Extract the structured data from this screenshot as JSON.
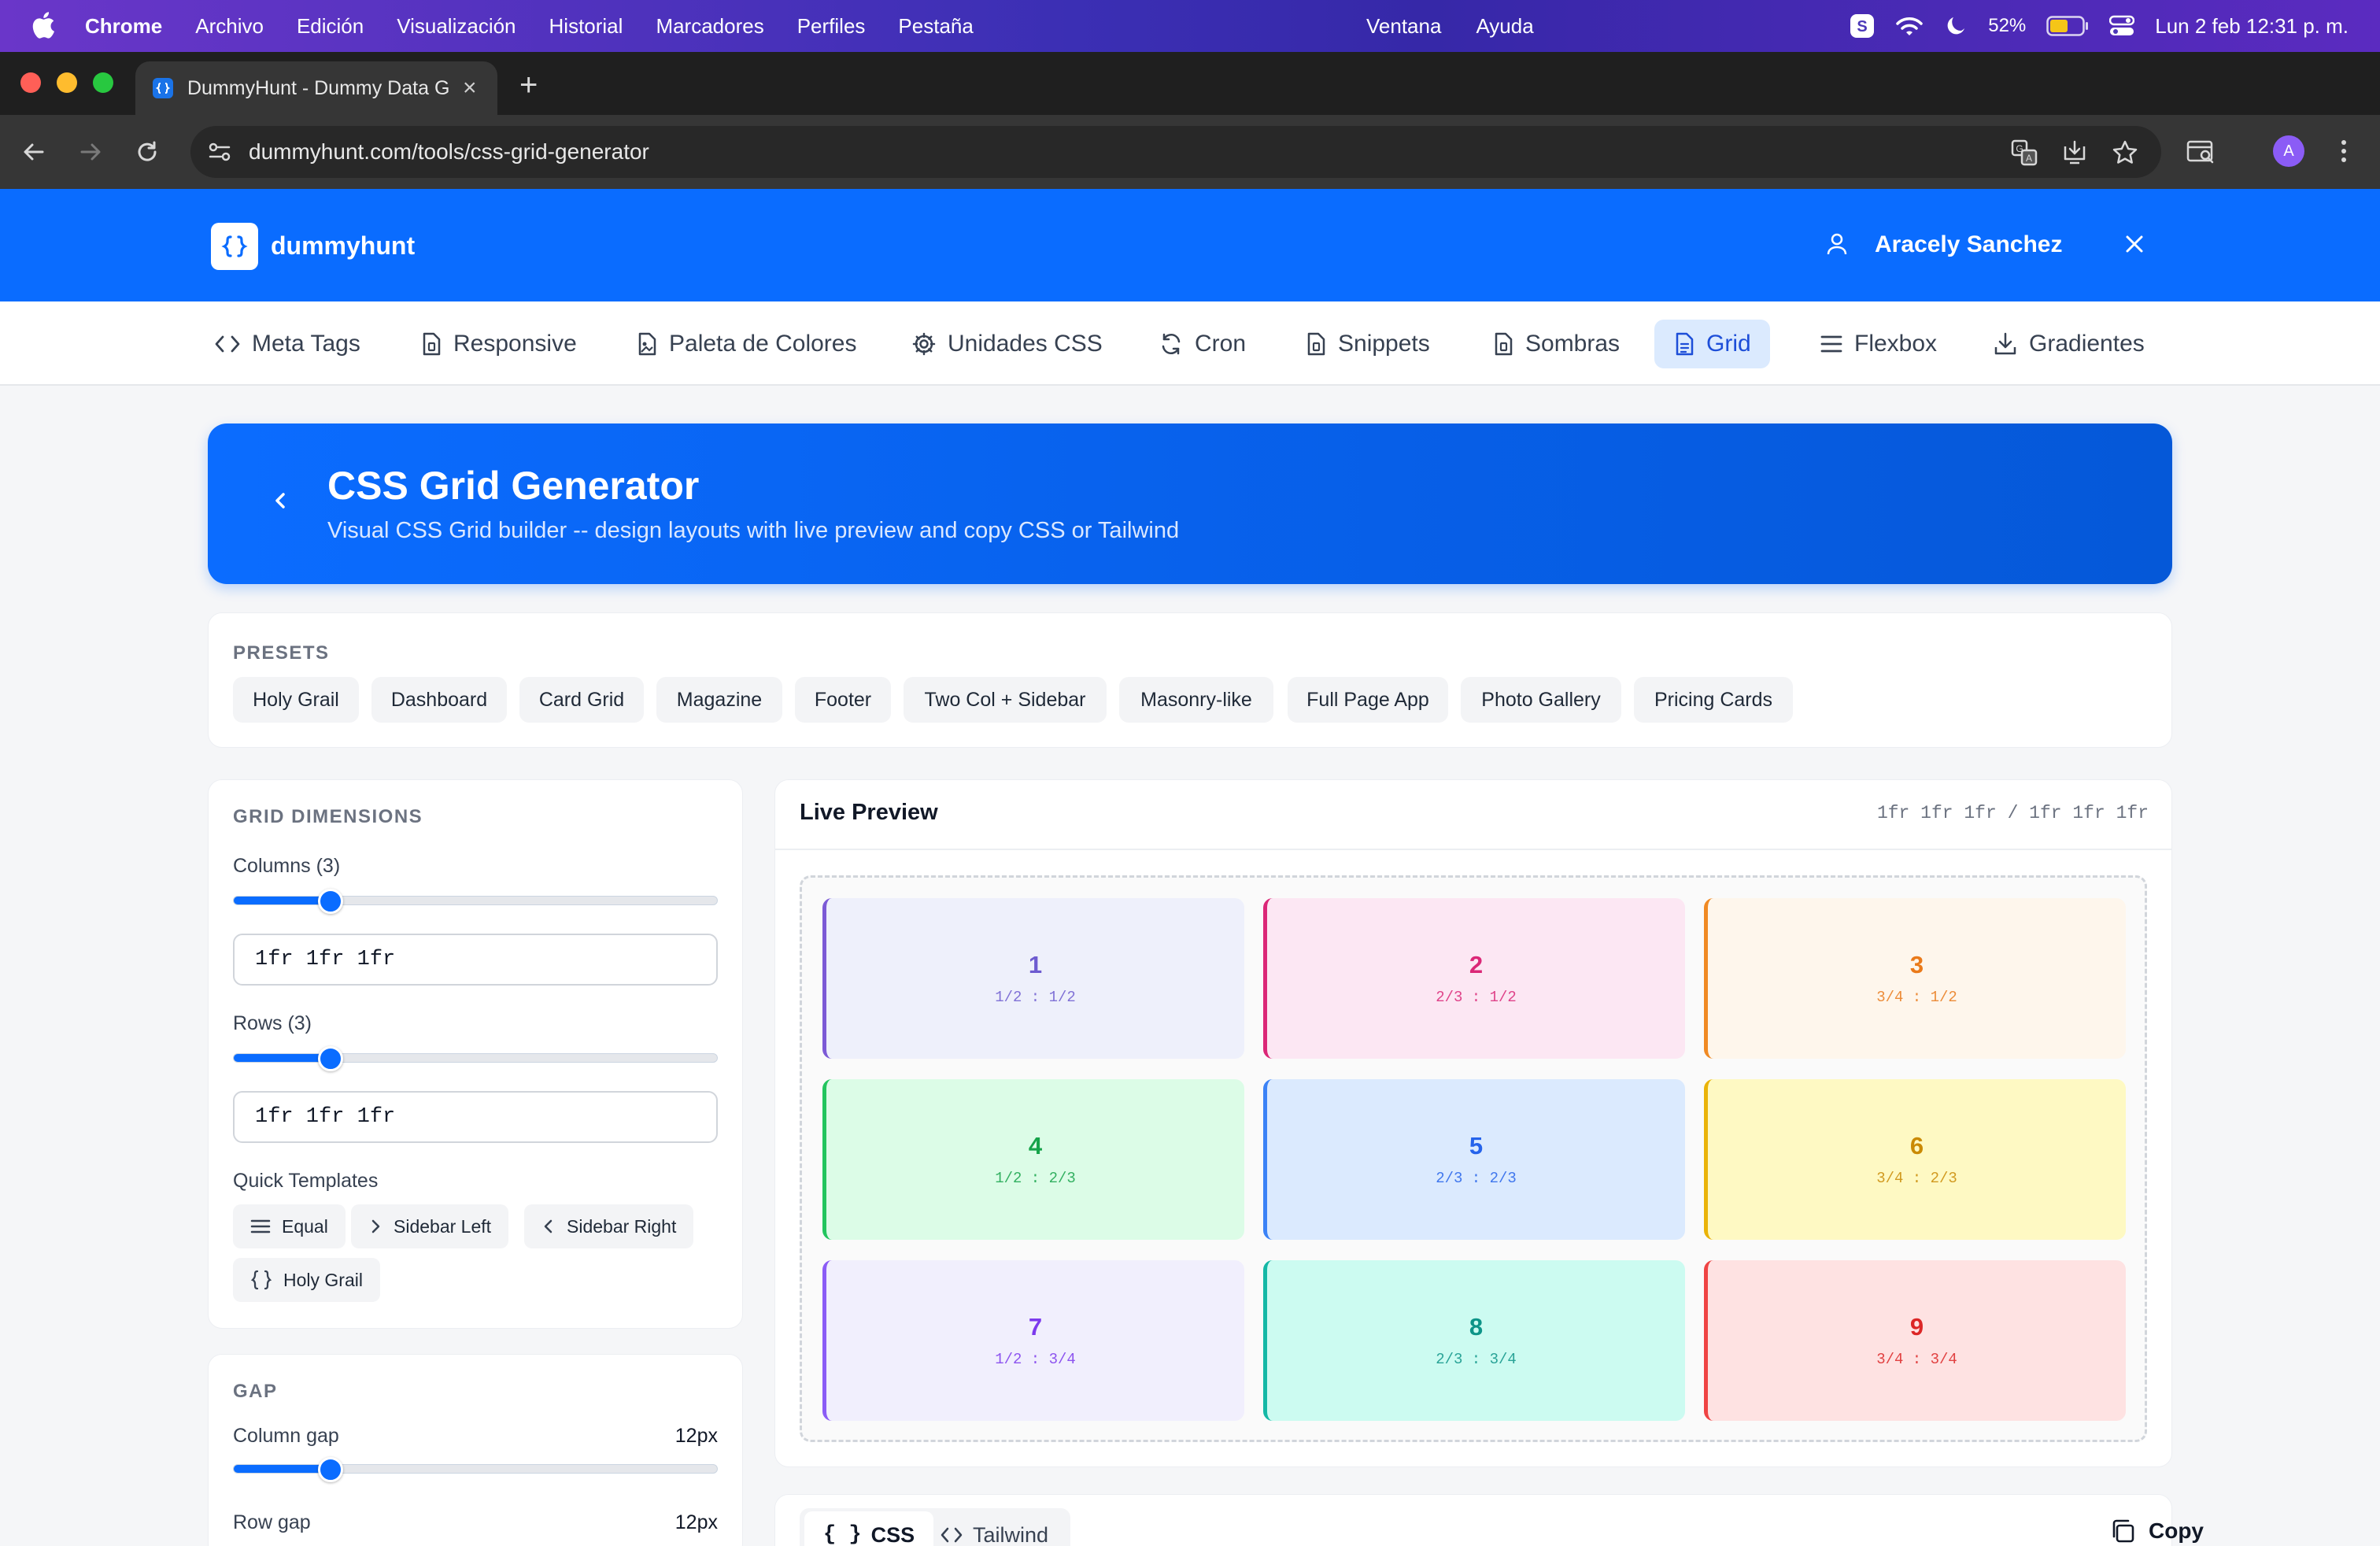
{
  "menubar": {
    "app": "Chrome",
    "items": [
      "Archivo",
      "Edición",
      "Visualización",
      "Historial",
      "Marcadores",
      "Perfiles",
      "Pestaña"
    ],
    "items_mid": [
      "Ventana",
      "Ayuda"
    ],
    "battery": "52%",
    "clock": "Lun 2 feb 12:31 p. m."
  },
  "browser": {
    "tab_title": "DummyHunt - Dummy Data G",
    "url": "dummyhunt.com/tools/css-grid-generator",
    "profile_initial": "A"
  },
  "site": {
    "brand": "dummyhunt",
    "user_name": "Aracely Sanchez"
  },
  "nav": {
    "items": [
      {
        "label": "Meta Tags",
        "icon": "code-icon"
      },
      {
        "label": "Responsive",
        "icon": "file-icon"
      },
      {
        "label": "Paleta de Colores",
        "icon": "image-file-icon"
      },
      {
        "label": "Unidades CSS",
        "icon": "gear-icon"
      },
      {
        "label": "Cron",
        "icon": "refresh-icon"
      },
      {
        "label": "Snippets",
        "icon": "file-icon"
      },
      {
        "label": "Sombras",
        "icon": "file-icon"
      },
      {
        "label": "Grid",
        "icon": "document-icon"
      },
      {
        "label": "Flexbox",
        "icon": "menu-lines-icon"
      },
      {
        "label": "Gradientes",
        "icon": "download-icon"
      }
    ],
    "active": "Grid"
  },
  "hero": {
    "title": "CSS Grid Generator",
    "subtitle": "Visual CSS Grid builder -- design layouts with live preview and copy CSS or Tailwind"
  },
  "presets": {
    "label": "PRESETS",
    "items": [
      "Holy Grail",
      "Dashboard",
      "Card Grid",
      "Magazine",
      "Footer",
      "Two Col + Sidebar",
      "Masonry-like",
      "Full Page App",
      "Photo Gallery",
      "Pricing Cards"
    ]
  },
  "dimensions": {
    "label": "GRID DIMENSIONS",
    "columns_label": "Columns (3)",
    "columns_slider_fraction": 0.2,
    "columns_value": "1fr 1fr 1fr",
    "rows_label": "Rows (3)",
    "rows_slider_fraction": 0.2,
    "rows_value": "1fr 1fr 1fr",
    "quick_templates_label": "Quick Templates",
    "quick_templates": [
      "Equal",
      "Sidebar Left",
      "Sidebar Right",
      "Holy Grail"
    ]
  },
  "gap": {
    "label": "GAP",
    "column_gap_label": "Column gap",
    "column_gap_value": "12px",
    "column_gap_fraction": 0.2,
    "row_gap_label": "Row gap",
    "row_gap_value": "12px"
  },
  "preview": {
    "title": "Live Preview",
    "template": "1fr 1fr 1fr / 1fr 1fr 1fr",
    "cells": [
      {
        "num": "1",
        "pos": "1/2 : 1/2",
        "color": "#6d5bd0",
        "bg": "#eef0fb",
        "border": "#7c5ad6"
      },
      {
        "num": "2",
        "pos": "2/3 : 1/2",
        "color": "#db2777",
        "bg": "#fce7f3",
        "border": "#db2777"
      },
      {
        "num": "3",
        "pos": "3/4 : 1/2",
        "color": "#ea7a1a",
        "bg": "#fef6ec",
        "border": "#f08a24"
      },
      {
        "num": "4",
        "pos": "1/2 : 2/3",
        "color": "#16a34a",
        "bg": "#dcfce7",
        "border": "#22c55e"
      },
      {
        "num": "5",
        "pos": "2/3 : 2/3",
        "color": "#2563eb",
        "bg": "#dbeafe",
        "border": "#3b82f6"
      },
      {
        "num": "6",
        "pos": "3/4 : 2/3",
        "color": "#ca8a04",
        "bg": "#fef9c3",
        "border": "#eab308"
      },
      {
        "num": "7",
        "pos": "1/2 : 3/4",
        "color": "#7c3aed",
        "bg": "#f1effd",
        "border": "#8b5cf6"
      },
      {
        "num": "8",
        "pos": "2/3 : 3/4",
        "color": "#0d9488",
        "bg": "#ccfbf1",
        "border": "#14b8a6"
      },
      {
        "num": "9",
        "pos": "3/4 : 3/4",
        "color": "#dc2626",
        "bg": "#fee2e2",
        "border": "#ef4444"
      }
    ]
  },
  "code": {
    "tabs": [
      "CSS",
      "Tailwind"
    ],
    "active_tab": "CSS",
    "copy_label": "Copy"
  },
  "colors": {
    "brand": "#0a6cff",
    "active_nav_bg": "#dbeafe"
  }
}
